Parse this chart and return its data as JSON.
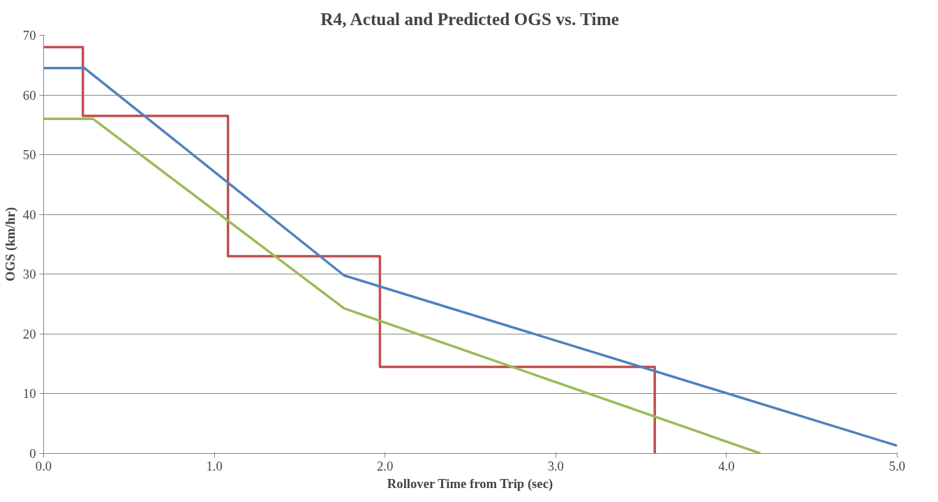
{
  "chart_data": {
    "type": "line",
    "title": "R4, Actual and Predicted OGS vs. Time",
    "xlabel": "Rollover Time from Trip (sec)",
    "ylabel": "OGS (km/hr)",
    "xlim": [
      0,
      5
    ],
    "xticks": [
      {
        "value": 0,
        "label": "0.0"
      },
      {
        "value": 1,
        "label": "1.0"
      },
      {
        "value": 2,
        "label": "2.0"
      },
      {
        "value": 3,
        "label": "3.0"
      },
      {
        "value": 4,
        "label": "4.0"
      },
      {
        "value": 5,
        "label": "5.0"
      }
    ],
    "ylim": [
      0,
      70
    ],
    "yticks": [
      0,
      10,
      20,
      30,
      40,
      50,
      60,
      70
    ],
    "grid": "y",
    "marker": "none",
    "line_style": "solid",
    "series": [
      {
        "type": "step",
        "color": "#c0504d",
        "x": [
          0,
          0.23,
          1.08,
          1.97,
          3.58
        ],
        "values": [
          68,
          56.5,
          33,
          14.5,
          0
        ]
      },
      {
        "color": "#4f81bd",
        "x": [
          0,
          0.24,
          1.76,
          5.0
        ],
        "values": [
          64.5,
          64.5,
          29.8,
          1.3
        ]
      },
      {
        "color": "#9bbb59",
        "x": [
          0,
          0.29,
          1.76,
          4.2
        ],
        "values": [
          56,
          56,
          24.3,
          0
        ]
      }
    ]
  }
}
